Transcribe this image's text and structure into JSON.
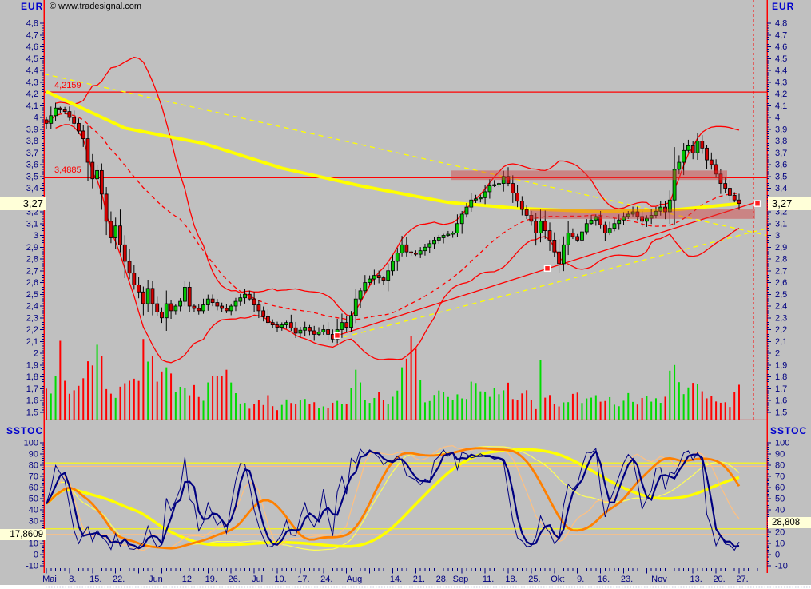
{
  "header": {
    "symbol_left": "EUR",
    "symbol_right": "EUR",
    "copyright": "© www.tradesignal.com",
    "stoch_title_left": "SSTOC",
    "stoch_title_right": "SSTOC"
  },
  "price_panel": {
    "current_price_label": "3,27",
    "hline_labels": [
      "4,2159",
      "3,4885"
    ]
  },
  "stoch_panel": {
    "last_left_label": "17,8609",
    "last_right_label": "28,808"
  },
  "colors": {
    "background": "#c0c0c0",
    "axis_line": "#ff0000",
    "axis_text": "#000080",
    "title_text": "#0000cc",
    "candle_up": "#00c400",
    "candle_down": "#d40000",
    "volume_up": "#00dc00",
    "volume_down": "#ff0000",
    "bollinger": "#ff0000",
    "ma_yellow": "#ffff00",
    "ma_dashed_red": "#ff0000",
    "zone_pink": "rgba(215,60,60,0.45)",
    "highlight_bg": "#ffffd8",
    "stoch_fast": "#000080",
    "stoch_medium": "#ff8000",
    "stoch_medium_thin": "#ffc080",
    "stoch_slow": "#ffff00"
  },
  "x_axis": {
    "labels": [
      {
        "t": "Mai",
        "i": 0
      },
      {
        "t": "8.",
        "i": 5
      },
      {
        "t": "15.",
        "i": 10
      },
      {
        "t": "22.",
        "i": 15
      },
      {
        "t": "Jun",
        "i": 23
      },
      {
        "t": "12.",
        "i": 30
      },
      {
        "t": "19.",
        "i": 35
      },
      {
        "t": "26.",
        "i": 40
      },
      {
        "t": "Jul",
        "i": 45
      },
      {
        "t": "10.",
        "i": 50
      },
      {
        "t": "17.",
        "i": 55
      },
      {
        "t": "24.",
        "i": 60
      },
      {
        "t": "Aug",
        "i": 66
      },
      {
        "t": "14.",
        "i": 75
      },
      {
        "t": "21.",
        "i": 80
      },
      {
        "t": "28.",
        "i": 85
      },
      {
        "t": "Sep",
        "i": 89
      },
      {
        "t": "11.",
        "i": 95
      },
      {
        "t": "18.",
        "i": 100
      },
      {
        "t": "25.",
        "i": 105
      },
      {
        "t": "Okt",
        "i": 110
      },
      {
        "t": "9.",
        "i": 115
      },
      {
        "t": "16.",
        "i": 120
      },
      {
        "t": "23.",
        "i": 125
      },
      {
        "t": "Nov",
        "i": 132
      },
      {
        "t": "13.",
        "i": 140
      },
      {
        "t": "20.",
        "i": 145
      },
      {
        "t": "27.",
        "i": 150
      }
    ],
    "n_slots": 155
  },
  "chart_data": [
    {
      "type": "candlestick",
      "title": "EUR daily with Bollinger bands, moving averages, trendlines and volume",
      "ylabel": "EUR",
      "ylim": [
        1.5,
        4.85
      ],
      "ytick_min": 1.5,
      "ytick_max": 4.8,
      "ytick_step": 0.1,
      "n_candles": 151,
      "last_price": 3.27,
      "hlines": [
        4.2159,
        3.4885
      ],
      "zones": [
        {
          "price_from": 3.47,
          "price_to": 3.55,
          "x_from": 565,
          "x_to": 910
        },
        {
          "price_from": 3.14,
          "price_to": 3.22,
          "x_from": 663,
          "x_to": 945
        }
      ],
      "trendlines": [
        {
          "name": "support-rising-red",
          "style": "solid",
          "color": "#ff0000",
          "x1": 422,
          "p1": 2.15,
          "x2": 948,
          "p2": 3.285
        },
        {
          "name": "falling-yellow-dashed",
          "style": "dashed",
          "color": "#ffff00",
          "x1": 55,
          "p1": 4.37,
          "x2": 960,
          "p2": 3.0
        },
        {
          "name": "rising-yellow-dashed",
          "style": "dashed",
          "color": "#ffff00",
          "x1": 420,
          "p1": 2.12,
          "x2": 960,
          "p2": 3.06
        }
      ],
      "vline_dashed_red_x": 943,
      "markers": [
        {
          "x": 422,
          "price": 2.15
        },
        {
          "x": 685,
          "price": 2.72
        },
        {
          "x": 948,
          "price": 3.27
        }
      ],
      "indicators": {
        "bollinger_period": 20,
        "bollinger_dev": 2,
        "sma_dashed_red_period": 30
      },
      "sma_yellow_keypoints": [
        [
          0,
          4.22
        ],
        [
          17,
          3.91
        ],
        [
          34,
          3.78
        ],
        [
          51,
          3.57
        ],
        [
          68,
          3.42
        ],
        [
          87,
          3.28
        ],
        [
          102,
          3.23
        ],
        [
          120,
          3.2
        ],
        [
          137,
          3.22
        ],
        [
          150,
          3.27
        ]
      ],
      "close_keypoints": [
        [
          0,
          3.95
        ],
        [
          2,
          4.08
        ],
        [
          4,
          4.05
        ],
        [
          6,
          3.95
        ],
        [
          8,
          3.82
        ],
        [
          9,
          3.62
        ],
        [
          10,
          3.48
        ],
        [
          11,
          3.55
        ],
        [
          12,
          3.35
        ],
        [
          13,
          3.12
        ],
        [
          14,
          2.98
        ],
        [
          15,
          3.08
        ],
        [
          16,
          2.92
        ],
        [
          17,
          2.78
        ],
        [
          18,
          2.68
        ],
        [
          19,
          2.58
        ],
        [
          20,
          2.52
        ],
        [
          21,
          2.42
        ],
        [
          22,
          2.55
        ],
        [
          23,
          2.42
        ],
        [
          24,
          2.35
        ],
        [
          25,
          2.3
        ],
        [
          26,
          2.42
        ],
        [
          27,
          2.36
        ],
        [
          29,
          2.44
        ],
        [
          30,
          2.56
        ],
        [
          31,
          2.4
        ],
        [
          33,
          2.36
        ],
        [
          35,
          2.46
        ],
        [
          37,
          2.4
        ],
        [
          39,
          2.36
        ],
        [
          41,
          2.44
        ],
        [
          43,
          2.5
        ],
        [
          44,
          2.46
        ],
        [
          46,
          2.36
        ],
        [
          48,
          2.26
        ],
        [
          50,
          2.22
        ],
        [
          52,
          2.26
        ],
        [
          54,
          2.17
        ],
        [
          56,
          2.22
        ],
        [
          58,
          2.16
        ],
        [
          60,
          2.2
        ],
        [
          62,
          2.12
        ],
        [
          63,
          2.2
        ],
        [
          64,
          2.26
        ],
        [
          65,
          2.22
        ],
        [
          66,
          2.32
        ],
        [
          67,
          2.46
        ],
        [
          69,
          2.6
        ],
        [
          71,
          2.66
        ],
        [
          73,
          2.62
        ],
        [
          75,
          2.78
        ],
        [
          77,
          2.92
        ],
        [
          78,
          2.86
        ],
        [
          80,
          2.84
        ],
        [
          82,
          2.9
        ],
        [
          84,
          2.96
        ],
        [
          86,
          3.0
        ],
        [
          88,
          3.02
        ],
        [
          90,
          3.18
        ],
        [
          92,
          3.3
        ],
        [
          94,
          3.32
        ],
        [
          96,
          3.42
        ],
        [
          98,
          3.44
        ],
        [
          99,
          3.5
        ],
        [
          100,
          3.44
        ],
        [
          101,
          3.36
        ],
        [
          103,
          3.22
        ],
        [
          105,
          3.12
        ],
        [
          106,
          3.02
        ],
        [
          107,
          3.12
        ],
        [
          109,
          2.96
        ],
        [
          110,
          2.86
        ],
        [
          111,
          2.76
        ],
        [
          112,
          2.92
        ],
        [
          113,
          3.02
        ],
        [
          115,
          2.96
        ],
        [
          117,
          3.1
        ],
        [
          119,
          3.16
        ],
        [
          121,
          3.02
        ],
        [
          123,
          3.1
        ],
        [
          125,
          3.16
        ],
        [
          127,
          3.2
        ],
        [
          129,
          3.12
        ],
        [
          131,
          3.17
        ],
        [
          133,
          3.24
        ],
        [
          134,
          3.2
        ],
        [
          135,
          3.3
        ],
        [
          136,
          3.56
        ],
        [
          137,
          3.62
        ],
        [
          138,
          3.72
        ],
        [
          139,
          3.76
        ],
        [
          140,
          3.7
        ],
        [
          141,
          3.8
        ],
        [
          142,
          3.74
        ],
        [
          143,
          3.64
        ],
        [
          144,
          3.6
        ],
        [
          145,
          3.52
        ],
        [
          146,
          3.44
        ],
        [
          147,
          3.4
        ],
        [
          148,
          3.34
        ],
        [
          149,
          3.3
        ],
        [
          150,
          3.27
        ]
      ],
      "volume_keypoints": [
        [
          0,
          35
        ],
        [
          2,
          55
        ],
        [
          3,
          80
        ],
        [
          5,
          30
        ],
        [
          7,
          45
        ],
        [
          9,
          58
        ],
        [
          11,
          75
        ],
        [
          13,
          52
        ],
        [
          15,
          30
        ],
        [
          17,
          55
        ],
        [
          19,
          45
        ],
        [
          21,
          80
        ],
        [
          22,
          95
        ],
        [
          24,
          40
        ],
        [
          26,
          65
        ],
        [
          28,
          45
        ],
        [
          30,
          42
        ],
        [
          32,
          38
        ],
        [
          34,
          25
        ],
        [
          36,
          50
        ],
        [
          38,
          55
        ],
        [
          40,
          48
        ],
        [
          42,
          28
        ],
        [
          44,
          12
        ],
        [
          46,
          20
        ],
        [
          48,
          28
        ],
        [
          50,
          14
        ],
        [
          52,
          22
        ],
        [
          54,
          16
        ],
        [
          56,
          30
        ],
        [
          58,
          20
        ],
        [
          60,
          14
        ],
        [
          62,
          28
        ],
        [
          64,
          16
        ],
        [
          66,
          35
        ],
        [
          67,
          58
        ],
        [
          68,
          45
        ],
        [
          70,
          24
        ],
        [
          72,
          30
        ],
        [
          74,
          20
        ],
        [
          76,
          40
        ],
        [
          79,
          105
        ],
        [
          80,
          88
        ],
        [
          82,
          30
        ],
        [
          84,
          26
        ],
        [
          86,
          45
        ],
        [
          88,
          33
        ],
        [
          90,
          26
        ],
        [
          92,
          45
        ],
        [
          94,
          30
        ],
        [
          96,
          40
        ],
        [
          98,
          28
        ],
        [
          100,
          48
        ],
        [
          102,
          24
        ],
        [
          104,
          38
        ],
        [
          106,
          18
        ],
        [
          107,
          60
        ],
        [
          108,
          28
        ],
        [
          110,
          24
        ],
        [
          112,
          18
        ],
        [
          114,
          30
        ],
        [
          116,
          24
        ],
        [
          118,
          32
        ],
        [
          120,
          20
        ],
        [
          122,
          28
        ],
        [
          124,
          18
        ],
        [
          126,
          30
        ],
        [
          128,
          24
        ],
        [
          130,
          35
        ],
        [
          132,
          28
        ],
        [
          134,
          26
        ],
        [
          136,
          75
        ],
        [
          137,
          55
        ],
        [
          138,
          40
        ],
        [
          140,
          45
        ],
        [
          142,
          34
        ],
        [
          144,
          30
        ],
        [
          146,
          26
        ],
        [
          148,
          18
        ],
        [
          150,
          38
        ]
      ]
    },
    {
      "type": "line",
      "title": "SSTOC",
      "ylim": [
        -12,
        120
      ],
      "ytick_min": -10,
      "ytick_max": 100,
      "ytick_step": 10,
      "levels_yellow": [
        82,
        23
      ],
      "levels_peach": [
        79,
        18
      ],
      "last_left": 17.8609,
      "last_right": 28.808,
      "series": [
        {
          "name": "stoch-slow-yellow",
          "k_period": 45,
          "thin_smooth": 12,
          "thick_smooth": 20,
          "thin_color": "#ffff55",
          "thick_color": "#ffff00",
          "thin_w": 1.2,
          "thick_w": 3.5
        },
        {
          "name": "stoch-medium-orange",
          "k_period": 21,
          "thin_smooth": 4,
          "thick_smooth": 9,
          "thin_color": "#ffc080",
          "thick_color": "#ff8000",
          "thin_w": 1.2,
          "thick_w": 2.8
        },
        {
          "name": "stoch-fast-navy",
          "k_period": 7,
          "thin_smooth": 1,
          "thick_smooth": 3,
          "thin_color": "#000080",
          "thick_color": "#000080",
          "thin_w": 1.0,
          "thick_w": 2.2
        }
      ]
    }
  ]
}
